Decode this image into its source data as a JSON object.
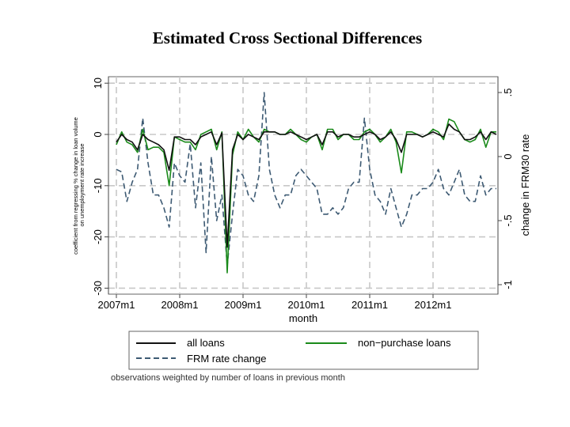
{
  "title": "Estimated Cross Sectional Differences",
  "note": "observations weighted by number of loans in previous month",
  "chart_data": {
    "type": "line",
    "xlabel": "month",
    "ylabel_left": "coefficient from regressing % change in loan volume\non unemployment rate increase",
    "ylabel_right": "change in FRM30 rate",
    "x_ticks": [
      "2007m1",
      "2008m1",
      "2009m1",
      "2010m1",
      "2011m1",
      "2012m1"
    ],
    "y_left_ticks": [
      "10",
      "0",
      "-10",
      "-20",
      "-30"
    ],
    "y_right_ticks": [
      ".5",
      "0",
      "-.5",
      "-1"
    ],
    "y_left_range": [
      -30,
      10
    ],
    "y_right_range": [
      -1,
      0.5
    ],
    "grid": true,
    "legend_position": "bottom",
    "legend": [
      {
        "label": "all loans",
        "color": "#111111",
        "dash": "solid"
      },
      {
        "label": "non−purchase loans",
        "color": "#1a8a1a",
        "dash": "solid"
      },
      {
        "label": "FRM rate change",
        "color": "#3d5a73",
        "dash": "dashed"
      }
    ],
    "series": [
      {
        "name": "all loans",
        "axis": "left",
        "color": "#111111",
        "values": [
          -1.5,
          0,
          -1,
          -1.5,
          -3,
          0,
          -1,
          -1.5,
          -2,
          -3,
          -7,
          -0.5,
          -0.5,
          -1,
          -1,
          -2,
          -0.5,
          0,
          0.5,
          -2,
          0.3,
          -22,
          -3,
          0,
          -1,
          0,
          -0.5,
          -1,
          0.5,
          0.5,
          0.5,
          0,
          0,
          0.5,
          0,
          -0.5,
          -1,
          -0.5,
          0,
          -2,
          0.5,
          0.5,
          -0.5,
          0,
          0,
          -0.5,
          -0.5,
          0,
          0.5,
          0,
          -1,
          -0.5,
          0.5,
          -1,
          -3.5,
          0,
          0,
          0,
          -0.5,
          0,
          0.5,
          0,
          -0.5,
          2,
          1,
          0.5,
          -1,
          -1,
          -0.5,
          0.5,
          -1,
          0.5,
          0
        ]
      },
      {
        "name": "non−purchase loans",
        "axis": "left",
        "color": "#1a8a1a",
        "values": [
          -2,
          0.5,
          -1.5,
          -2,
          -3.5,
          1,
          -3,
          -2.5,
          -2.5,
          -3.5,
          -10,
          -0.5,
          -1,
          -1.5,
          -1.5,
          -3,
          0,
          0.5,
          1,
          -3,
          0.5,
          -27,
          -4,
          0.5,
          -1,
          1,
          -0.5,
          -1.5,
          1,
          0.5,
          0.5,
          0,
          0,
          1,
          0,
          -1,
          -1.5,
          -0.5,
          0,
          -3,
          1,
          1,
          -1,
          0,
          0,
          -1,
          -1,
          0.5,
          1,
          0,
          -1.5,
          -0.5,
          1,
          -1.5,
          -7.5,
          0.5,
          0.5,
          0,
          -0.5,
          0,
          1,
          0.5,
          -1,
          3,
          2.5,
          0.5,
          -1,
          -1.5,
          -1,
          1,
          -2.5,
          0.5,
          0.5
        ]
      },
      {
        "name": "FRM rate change",
        "axis": "right",
        "color": "#3d5a73",
        "values": [
          -0.1,
          -0.12,
          -0.35,
          -0.2,
          -0.1,
          0.3,
          -0.05,
          -0.3,
          -0.3,
          -0.4,
          -0.55,
          -0.05,
          -0.15,
          -0.2,
          0.1,
          -0.4,
          -0.05,
          -0.75,
          0,
          -0.5,
          -0.3,
          -0.85,
          -0.45,
          -0.1,
          -0.15,
          -0.3,
          -0.35,
          -0.15,
          0.5,
          -0.1,
          -0.3,
          -0.4,
          -0.3,
          -0.3,
          -0.15,
          -0.1,
          -0.15,
          -0.2,
          -0.25,
          -0.45,
          -0.45,
          -0.4,
          -0.45,
          -0.4,
          -0.25,
          -0.2,
          -0.2,
          0.3,
          -0.1,
          -0.3,
          -0.35,
          -0.45,
          -0.25,
          -0.4,
          -0.55,
          -0.45,
          -0.3,
          -0.3,
          -0.25,
          -0.25,
          -0.2,
          -0.1,
          -0.25,
          -0.3,
          -0.2,
          -0.1,
          -0.3,
          -0.35,
          -0.35,
          -0.15,
          -0.3,
          -0.25,
          -0.25
        ]
      }
    ]
  }
}
